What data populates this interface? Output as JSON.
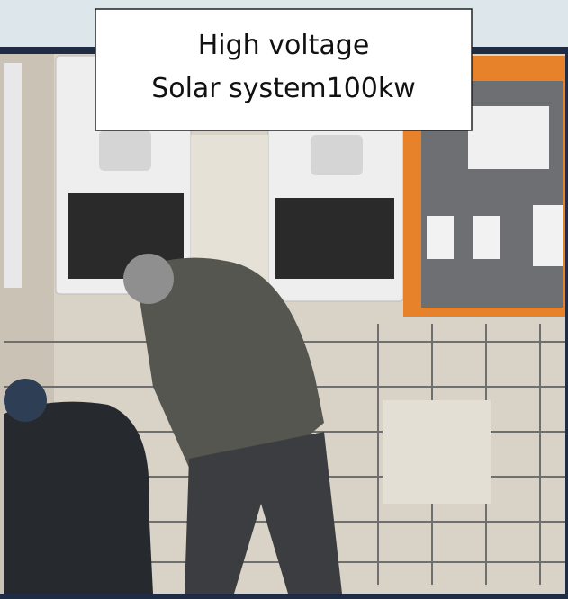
{
  "caption": {
    "lines": [
      "High voltage",
      "Solar system100kw"
    ]
  }
}
